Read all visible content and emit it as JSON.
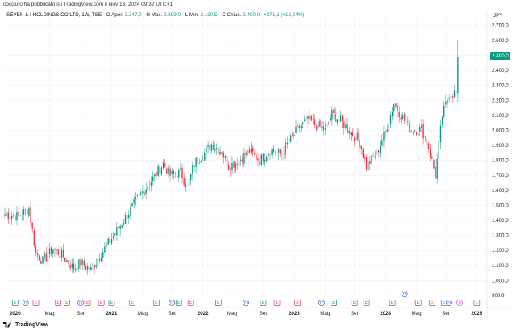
{
  "publisher_text": "cocciuto ha pubblicato su TradingView.com il Nov 13, 2024 09:32 UTC+1",
  "legend": {
    "symbol": "SEVEN & I HOLDINGS CO LTD, 1W, TSE",
    "open_label": "O",
    "open_word": "Aper.",
    "open": "2.247,0",
    "high_label": "H",
    "high_word": "Max.",
    "high": "2.599,0",
    "low_label": "L",
    "low_word": "Min.",
    "low": "2.190,5",
    "close_label": "C",
    "close_word": "Chius.",
    "close": "2.490,0",
    "change": "+271,5 (+12,24%)"
  },
  "currency": "JPY",
  "current_price_label": "2.490,0",
  "footer_brand": "TradingView",
  "colors": {
    "up": "#089981",
    "down": "#f23645",
    "grid": "#f0f3fa",
    "last_line": "#089981"
  },
  "chart_data": {
    "type": "candlestick",
    "title": "SEVEN & I HOLDINGS CO LTD, 1W, TSE",
    "ylim": [
      900,
      2750
    ],
    "y_ticks": [
      "2.700,0",
      "2.600,0",
      "2.500,0",
      "2.400,0",
      "2.300,0",
      "2.200,0",
      "2.100,0",
      "2.000,0",
      "1.900,0",
      "1.800,0",
      "1.700,0",
      "1.600,0",
      "1.500,0",
      "1.400,0",
      "1.300,0",
      "1.200,0",
      "1.100,0",
      "1.000,0",
      "900,0"
    ],
    "y_tick_values": [
      2700,
      2600,
      2500,
      2400,
      2300,
      2200,
      2100,
      2000,
      1900,
      1800,
      1700,
      1600,
      1500,
      1400,
      1300,
      1200,
      1100,
      1000,
      900
    ],
    "x_ticks": [
      {
        "label": "2020",
        "bold": true,
        "idx": 6
      },
      {
        "label": "Mag",
        "bold": false,
        "idx": 26
      },
      {
        "label": "Set",
        "bold": false,
        "idx": 44
      },
      {
        "label": "2021",
        "bold": true,
        "idx": 62
      },
      {
        "label": "Mag",
        "bold": false,
        "idx": 80
      },
      {
        "label": "Set",
        "bold": false,
        "idx": 97
      },
      {
        "label": "2022",
        "bold": true,
        "idx": 115
      },
      {
        "label": "Mag",
        "bold": false,
        "idx": 132
      },
      {
        "label": "Set",
        "bold": false,
        "idx": 150
      },
      {
        "label": "2023",
        "bold": true,
        "idx": 168
      },
      {
        "label": "Mag",
        "bold": false,
        "idx": 186
      },
      {
        "label": "Set",
        "bold": false,
        "idx": 203
      },
      {
        "label": "2024",
        "bold": true,
        "idx": 221
      },
      {
        "label": "Mag",
        "bold": false,
        "idx": 239
      },
      {
        "label": "Set",
        "bold": false,
        "idx": 256
      },
      {
        "label": "2025",
        "bold": true,
        "idx": 274
      }
    ],
    "anchors": [
      [
        0,
        1440
      ],
      [
        8,
        1430
      ],
      [
        14,
        1480
      ],
      [
        18,
        1180
      ],
      [
        22,
        1130
      ],
      [
        28,
        1210
      ],
      [
        34,
        1160
      ],
      [
        40,
        1080
      ],
      [
        44,
        1120
      ],
      [
        50,
        1070
      ],
      [
        56,
        1180
      ],
      [
        62,
        1280
      ],
      [
        70,
        1420
      ],
      [
        78,
        1560
      ],
      [
        86,
        1680
      ],
      [
        92,
        1780
      ],
      [
        96,
        1700
      ],
      [
        102,
        1720
      ],
      [
        106,
        1620
      ],
      [
        110,
        1780
      ],
      [
        116,
        1850
      ],
      [
        120,
        1910
      ],
      [
        126,
        1860
      ],
      [
        130,
        1760
      ],
      [
        136,
        1800
      ],
      [
        142,
        1860
      ],
      [
        148,
        1800
      ],
      [
        154,
        1870
      ],
      [
        160,
        1840
      ],
      [
        166,
        1940
      ],
      [
        170,
        2010
      ],
      [
        176,
        2070
      ],
      [
        180,
        2040
      ],
      [
        186,
        2000
      ],
      [
        190,
        2110
      ],
      [
        196,
        2050
      ],
      [
        200,
        2000
      ],
      [
        206,
        1920
      ],
      [
        210,
        1760
      ],
      [
        216,
        1850
      ],
      [
        222,
        2020
      ],
      [
        226,
        2180
      ],
      [
        230,
        2100
      ],
      [
        236,
        2000
      ],
      [
        242,
        2010
      ],
      [
        246,
        1890
      ],
      [
        250,
        1700
      ],
      [
        254,
        2100
      ],
      [
        258,
        2240
      ],
      [
        262,
        2250
      ]
    ],
    "last": {
      "open": 2247.0,
      "high": 2599.0,
      "low": 2190.5,
      "close": 2490.0
    }
  },
  "events": [
    {
      "idx": 6,
      "kind": "E"
    },
    {
      "idx": 12,
      "kind": "D"
    },
    {
      "idx": 18,
      "kind": "E"
    },
    {
      "idx": 31,
      "kind": "E"
    },
    {
      "idx": 36,
      "kind": "E"
    },
    {
      "idx": 44,
      "kind": "D"
    },
    {
      "idx": 48,
      "kind": "E"
    },
    {
      "idx": 56,
      "kind": "E"
    },
    {
      "idx": 62,
      "kind": "E"
    },
    {
      "idx": 74,
      "kind": "E"
    },
    {
      "idx": 88,
      "kind": "E"
    },
    {
      "idx": 97,
      "kind": "D"
    },
    {
      "idx": 101,
      "kind": "E"
    },
    {
      "idx": 108,
      "kind": "E"
    },
    {
      "idx": 124,
      "kind": "E"
    },
    {
      "idx": 140,
      "kind": "D"
    },
    {
      "idx": 150,
      "kind": "E"
    },
    {
      "idx": 158,
      "kind": "E"
    },
    {
      "idx": 170,
      "kind": "E"
    },
    {
      "idx": 184,
      "kind": "D"
    },
    {
      "idx": 191,
      "kind": "E"
    },
    {
      "idx": 203,
      "kind": "E"
    },
    {
      "idx": 210,
      "kind": "E"
    },
    {
      "idx": 225,
      "kind": "E"
    },
    {
      "idx": 232,
      "kind": "D"
    },
    {
      "idx": 240,
      "kind": "E"
    },
    {
      "idx": 248,
      "kind": "E"
    },
    {
      "idx": 255,
      "kind": "E"
    },
    {
      "idx": 258,
      "kind": "D"
    },
    {
      "idx": 264,
      "kind": "S"
    },
    {
      "idx": 274,
      "kind": "E"
    }
  ]
}
